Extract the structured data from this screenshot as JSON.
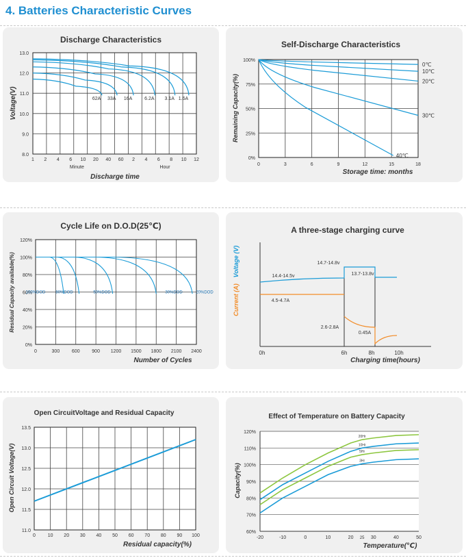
{
  "page": {
    "heading": "4.  Batteries Characteristic Curves"
  },
  "chart_data": [
    {
      "id": "discharge",
      "type": "line",
      "title": "Discharge Characteristics",
      "ylabel": "Voltage(V)",
      "xlabel": "Discharge time",
      "xlabel_sub": [
        "Minute",
        "Hour"
      ],
      "x_ticks": [
        "1",
        "2",
        "4",
        "6",
        "10",
        "20",
        "40",
        "60",
        "2",
        "4",
        "6",
        "8",
        "10",
        "12"
      ],
      "ylim": [
        8.0,
        13.0
      ],
      "y_ticks": [
        "8.0",
        "9.0",
        "10.0",
        "11.0",
        "12.0",
        "13.0"
      ],
      "grid": true,
      "line_color": "#1a9bd7",
      "series": [
        {
          "name": "62A",
          "start_v": 11.7,
          "end_tick": 5.5
        },
        {
          "name": "33A",
          "start_v": 12.0,
          "end_tick": 6.7
        },
        {
          "name": "16A",
          "start_v": 12.3,
          "end_tick": 8.0
        },
        {
          "name": "6.2A",
          "start_v": 12.55,
          "end_tick": 9.7
        },
        {
          "name": "3.1A",
          "start_v": 12.65,
          "end_tick": 11.3
        },
        {
          "name": "1.6A",
          "start_v": 12.7,
          "end_tick": 12.4
        }
      ]
    },
    {
      "id": "self",
      "type": "line",
      "title": "Self-Discharge Characteristics",
      "ylabel": "Remaining Capacity(%)",
      "xlabel": "Storage time: months",
      "x": [
        0,
        18
      ],
      "x_ticks": [
        "0",
        "3",
        "6",
        "9",
        "12",
        "15",
        "18"
      ],
      "ylim": [
        0,
        100
      ],
      "y_ticks": [
        "0%",
        "25%",
        "50%",
        "75%",
        "100%"
      ],
      "grid": true,
      "line_color": "#1a9bd7",
      "series": [
        {
          "name": "0℃",
          "end": 95
        },
        {
          "name": "10℃",
          "end": 88
        },
        {
          "name": "20℃",
          "end": 78
        },
        {
          "name": "30℃",
          "end": 43
        },
        {
          "name": "40℃",
          "end": 2
        }
      ]
    },
    {
      "id": "cycle",
      "type": "line",
      "title": "Cycle Life on D.O.D(25℃)",
      "ylabel": "Residual Capacity available(%)",
      "xlabel": "Number of Cycles",
      "x_ticks": [
        "0",
        "300",
        "600",
        "900",
        "1200",
        "1500",
        "1800",
        "2100",
        "2400"
      ],
      "xlim": [
        0,
        2400
      ],
      "ylim": [
        0,
        120
      ],
      "y_ticks": [
        "0%",
        "20%",
        "40%",
        "60%",
        "80%",
        "100%",
        "120%"
      ],
      "grid": true,
      "line_color": "#1a9bd7",
      "series": [
        {
          "name": "100%DOD",
          "end_x": 420
        },
        {
          "name": "80%DOD",
          "end_x": 650
        },
        {
          "name": "50%DOD",
          "end_x": 1150
        },
        {
          "name": "30%DOD",
          "end_x": 1800
        },
        {
          "name": "20%DOD",
          "end_x": 2340
        }
      ]
    },
    {
      "id": "charge",
      "type": "line",
      "title": "A three-stage charging curve",
      "ylabel_voltage": "Voltage (V)",
      "ylabel_current": "Current (A)",
      "xlabel": "Charging time(hours)",
      "x_ticks": [
        "0h",
        "6h",
        "8h",
        "10h"
      ],
      "voltage_color": "#1a9bd7",
      "current_color": "#f28c28",
      "annotations": [
        "14.4-14.5v",
        "14.7-14.8v",
        "13.7-13.8v",
        "4.5-4.7A",
        "2.6-2.8A",
        "0.45A"
      ]
    },
    {
      "id": "ocv",
      "type": "line",
      "title": "Open CircuitVoltage and Residual Capacity",
      "ylabel": "Open Circuit Voltage(V)",
      "xlabel": "Residual capacity(%)",
      "x_ticks": [
        "0",
        "10",
        "20",
        "30",
        "40",
        "50",
        "60",
        "70",
        "80",
        "90",
        "100"
      ],
      "xlim": [
        0,
        100
      ],
      "ylim": [
        11.0,
        13.5
      ],
      "y_ticks": [
        "11.0",
        "11.5",
        "12.0",
        "12.5",
        "13.0",
        "13.5"
      ],
      "grid": true,
      "line_color": "#1a9bd7",
      "series": [
        {
          "x": [
            0,
            100
          ],
          "y": [
            11.7,
            13.2
          ]
        }
      ]
    },
    {
      "id": "temp",
      "type": "line",
      "title": "Effect of Temperature on Battery Capacity",
      "ylabel": "Capacity(%)",
      "xlabel": "Temperature(℃)",
      "x_ticks": [
        "-20",
        "-10",
        "0",
        "10",
        "20",
        "25",
        "30",
        "40",
        "50"
      ],
      "xlim": [
        -20,
        50
      ],
      "ylim": [
        60,
        120
      ],
      "y_ticks": [
        "60%",
        "70%",
        "80%",
        "90%",
        "100%",
        "110%",
        "120%"
      ],
      "grid": true,
      "series": [
        {
          "name": "20Hr",
          "color": "#8dc63f",
          "x": [
            -20,
            -10,
            0,
            10,
            20,
            25,
            30,
            40,
            50
          ],
          "y": [
            83,
            92,
            100,
            107,
            113,
            115,
            116,
            117.5,
            118
          ]
        },
        {
          "name": "10Hr",
          "color": "#1a9bd7",
          "x": [
            -20,
            -10,
            0,
            10,
            20,
            25,
            30,
            40,
            50
          ],
          "y": [
            79,
            88,
            95,
            102,
            108,
            110,
            111,
            112.5,
            113
          ]
        },
        {
          "name": "5Hr",
          "color": "#8dc63f",
          "x": [
            -20,
            -10,
            0,
            10,
            20,
            25,
            30,
            40,
            50
          ],
          "y": [
            76,
            85,
            92,
            99,
            104.5,
            106,
            107,
            108.5,
            109
          ]
        },
        {
          "name": "3Hr",
          "color": "#1a9bd7",
          "x": [
            -20,
            -10,
            0,
            10,
            20,
            25,
            30,
            40,
            50
          ],
          "y": [
            71,
            80,
            87,
            94,
            99,
            100.5,
            101.5,
            103,
            103.5
          ]
        }
      ]
    }
  ]
}
